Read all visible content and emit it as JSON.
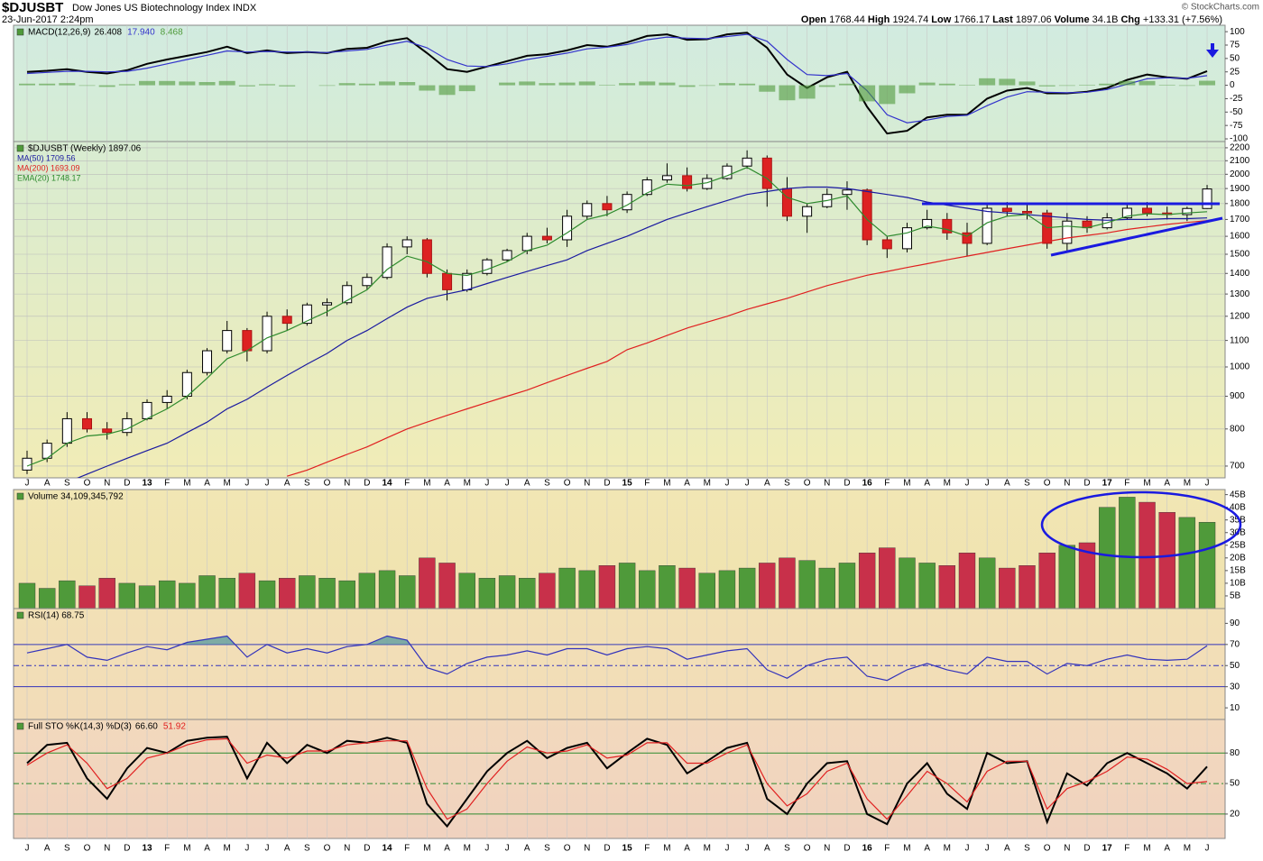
{
  "header": {
    "symbol": "$DJUSBT",
    "name": "Dow Jones US Biotechnology Index INDX",
    "date": "23-Jun-2017 2:24pm",
    "credit": "© StockCharts.com",
    "stats": [
      {
        "label": "Open",
        "value": "1768.44"
      },
      {
        "label": "High",
        "value": "1924.74"
      },
      {
        "label": "Low",
        "value": "1766.17"
      },
      {
        "label": "Last",
        "value": "1897.06"
      },
      {
        "label": "Volume",
        "value": "34.1B"
      },
      {
        "label": "Chg",
        "value": "+133.31 (+7.56%)"
      }
    ]
  },
  "chart_data": [
    {
      "type": "line",
      "title": "MACD(12,26,9)",
      "ylim": [
        -105,
        112
      ],
      "yticks": [
        100,
        75,
        50,
        25,
        0,
        -25,
        -50,
        -75,
        -100
      ],
      "series": [
        {
          "name": "26.408",
          "color": "#000000",
          "values": [
            25,
            27,
            30,
            25,
            22,
            28,
            40,
            48,
            55,
            62,
            72,
            60,
            65,
            60,
            62,
            60,
            68,
            70,
            82,
            88,
            60,
            30,
            25,
            35,
            45,
            55,
            58,
            65,
            75,
            72,
            80,
            92,
            95,
            85,
            86,
            95,
            98,
            70,
            20,
            -5,
            15,
            25,
            -40,
            -90,
            -85,
            -60,
            -55,
            -55,
            -25,
            -10,
            -5,
            -15,
            -15,
            -12,
            -5,
            10,
            20,
            15,
            12,
            26.408
          ]
        },
        {
          "name": "17.940",
          "color": "#3333cc",
          "values": [
            22,
            24,
            26,
            26,
            25,
            26,
            32,
            40,
            48,
            56,
            64,
            62,
            63,
            62,
            62,
            61,
            64,
            67,
            75,
            82,
            70,
            48,
            36,
            35,
            40,
            48,
            54,
            60,
            68,
            71,
            76,
            85,
            90,
            88,
            87,
            91,
            95,
            82,
            48,
            20,
            18,
            22,
            -10,
            -55,
            -70,
            -65,
            -58,
            -56,
            -38,
            -22,
            -12,
            -13,
            -14,
            -13,
            -8,
            2,
            12,
            14,
            13,
            17.94
          ]
        },
        {
          "name": "8.468",
          "color": "#4f9a3a",
          "type": "bar",
          "values": [
            3,
            3,
            4,
            -1,
            -3,
            2,
            8,
            8,
            7,
            6,
            8,
            -2,
            2,
            -2,
            0,
            -1,
            4,
            3,
            7,
            6,
            -10,
            -18,
            -11,
            0,
            5,
            7,
            4,
            5,
            7,
            1,
            4,
            7,
            5,
            -3,
            -1,
            4,
            3,
            -12,
            -28,
            -25,
            -3,
            3,
            -30,
            -35,
            -15,
            5,
            3,
            1,
            13,
            12,
            7,
            -2,
            -1,
            1,
            3,
            8,
            8,
            1,
            -1,
            8.468
          ]
        }
      ]
    },
    {
      "type": "candlestick",
      "title": "$DJUSBT (Weekly) 1897.06",
      "log_scale": true,
      "grid": true,
      "ylim": [
        671,
        2250
      ],
      "yticks": [
        700,
        800,
        900,
        1000,
        1100,
        1200,
        1300,
        1400,
        1500,
        1600,
        1700,
        1800,
        1900,
        2000,
        2100,
        2200
      ],
      "categories": [
        "J",
        "A",
        "S",
        "O",
        "N",
        "D",
        "13",
        "F",
        "M",
        "A",
        "M",
        "J",
        "J",
        "A",
        "S",
        "O",
        "N",
        "D",
        "14",
        "F",
        "M",
        "A",
        "M",
        "J",
        "J",
        "A",
        "S",
        "O",
        "N",
        "D",
        "15",
        "F",
        "M",
        "A",
        "M",
        "J",
        "J",
        "A",
        "S",
        "O",
        "N",
        "D",
        "16",
        "F",
        "M",
        "A",
        "M",
        "J",
        "J",
        "A",
        "S",
        "O",
        "N",
        "D",
        "17",
        "F",
        "M",
        "A",
        "M",
        "J"
      ],
      "open": [
        690,
        720,
        760,
        830,
        800,
        790,
        830,
        880,
        900,
        980,
        1060,
        1140,
        1060,
        1200,
        1170,
        1250,
        1260,
        1340,
        1380,
        1540,
        1580,
        1400,
        1320,
        1400,
        1470,
        1520,
        1600,
        1580,
        1720,
        1800,
        1760,
        1860,
        1960,
        1990,
        1900,
        1970,
        2060,
        2120,
        1900,
        1720,
        1780,
        1860,
        1890,
        1580,
        1530,
        1650,
        1700,
        1620,
        1560,
        1770,
        1750,
        1740,
        1560,
        1690,
        1650,
        1710,
        1770,
        1740,
        1730,
        1768.44
      ],
      "high": [
        740,
        770,
        850,
        850,
        820,
        850,
        890,
        920,
        990,
        1070,
        1180,
        1150,
        1220,
        1230,
        1260,
        1280,
        1360,
        1400,
        1560,
        1600,
        1590,
        1420,
        1420,
        1480,
        1530,
        1620,
        1650,
        1760,
        1820,
        1850,
        1880,
        1980,
        2080,
        2050,
        2000,
        2080,
        2180,
        2140,
        1980,
        1800,
        1900,
        1950,
        1900,
        1600,
        1680,
        1760,
        1740,
        1680,
        1790,
        1810,
        1800,
        1760,
        1740,
        1720,
        1740,
        1800,
        1810,
        1780,
        1780,
        1924.74
      ],
      "low": [
        680,
        710,
        750,
        790,
        770,
        780,
        825,
        860,
        890,
        970,
        1050,
        1020,
        1050,
        1140,
        1160,
        1200,
        1250,
        1320,
        1370,
        1500,
        1380,
        1270,
        1310,
        1390,
        1460,
        1500,
        1560,
        1540,
        1700,
        1720,
        1740,
        1850,
        1940,
        1880,
        1890,
        1960,
        2040,
        1780,
        1690,
        1620,
        1770,
        1760,
        1550,
        1480,
        1510,
        1640,
        1580,
        1490,
        1550,
        1720,
        1700,
        1530,
        1520,
        1620,
        1640,
        1700,
        1720,
        1700,
        1690,
        1766.17
      ],
      "close": [
        720,
        760,
        830,
        800,
        790,
        830,
        880,
        900,
        980,
        1060,
        1140,
        1060,
        1200,
        1170,
        1250,
        1260,
        1340,
        1380,
        1540,
        1580,
        1400,
        1320,
        1400,
        1470,
        1520,
        1600,
        1580,
        1720,
        1800,
        1760,
        1860,
        1960,
        1990,
        1900,
        1970,
        2060,
        2120,
        1900,
        1720,
        1780,
        1860,
        1890,
        1580,
        1530,
        1650,
        1700,
        1620,
        1560,
        1770,
        1750,
        1740,
        1560,
        1690,
        1650,
        1710,
        1770,
        1740,
        1730,
        1768.44,
        1897.06
      ],
      "series": [
        {
          "name": "MA(50) 1709.56",
          "color": "#1a1aa0",
          "values": [
            610,
            630,
            660,
            680,
            700,
            720,
            740,
            760,
            790,
            820,
            860,
            890,
            930,
            970,
            1010,
            1050,
            1100,
            1140,
            1190,
            1240,
            1280,
            1300,
            1320,
            1350,
            1380,
            1410,
            1440,
            1470,
            1520,
            1560,
            1600,
            1650,
            1700,
            1740,
            1780,
            1820,
            1860,
            1880,
            1900,
            1910,
            1910,
            1900,
            1880,
            1860,
            1840,
            1810,
            1790,
            1770,
            1750,
            1740,
            1730,
            1720,
            1710,
            1700,
            1695,
            1700,
            1700,
            1705,
            1705,
            1709.56
          ]
        },
        {
          "name": "MA(200) 1693.09",
          "color": "#e02020",
          "values": [
            null,
            null,
            null,
            null,
            null,
            null,
            null,
            null,
            null,
            null,
            null,
            null,
            null,
            675,
            690,
            710,
            730,
            750,
            775,
            800,
            820,
            840,
            860,
            880,
            900,
            920,
            945,
            970,
            995,
            1020,
            1064,
            1090,
            1120,
            1150,
            1175,
            1200,
            1230,
            1255,
            1280,
            1310,
            1340,
            1365,
            1391,
            1410,
            1430,
            1450,
            1470,
            1490,
            1510,
            1530,
            1550,
            1570,
            1590,
            1605,
            1620,
            1640,
            1655,
            1670,
            1682,
            1693.09
          ]
        },
        {
          "name": "EMA(20) 1748.17",
          "color": "#2e8b2e",
          "values": [
            700,
            720,
            760,
            780,
            785,
            800,
            830,
            860,
            900,
            960,
            1030,
            1060,
            1110,
            1140,
            1180,
            1220,
            1270,
            1320,
            1420,
            1490,
            1460,
            1400,
            1390,
            1420,
            1460,
            1520,
            1550,
            1620,
            1700,
            1730,
            1790,
            1870,
            1930,
            1920,
            1940,
            1990,
            2050,
            1970,
            1840,
            1800,
            1820,
            1850,
            1700,
            1600,
            1620,
            1660,
            1640,
            1600,
            1680,
            1720,
            1730,
            1650,
            1660,
            1650,
            1680,
            1720,
            1735,
            1730,
            1740,
            1748.17
          ]
        }
      ]
    },
    {
      "type": "bar",
      "title": "Volume 34,109,345,792",
      "up_color": "#4f9a3a",
      "down_color": "#c8304a",
      "ylim": [
        0,
        47
      ],
      "yticks": [
        {
          "value": 45,
          "label": "45B"
        },
        {
          "value": 40,
          "label": "40B"
        },
        {
          "value": 35,
          "label": "35B"
        },
        {
          "value": 30,
          "label": "30B"
        },
        {
          "value": 25,
          "label": "25B"
        },
        {
          "value": 20,
          "label": "20B"
        },
        {
          "value": 15,
          "label": "15B"
        },
        {
          "value": 10,
          "label": "10B"
        },
        {
          "value": 5,
          "label": "5B"
        }
      ],
      "values": [
        10,
        8,
        11,
        9,
        12,
        10,
        9,
        11,
        10,
        13,
        12,
        14,
        11,
        12,
        13,
        12,
        11,
        14,
        15,
        13,
        20,
        18,
        14,
        12,
        13,
        12,
        14,
        16,
        15,
        17,
        18,
        15,
        17,
        16,
        14,
        15,
        16,
        18,
        20,
        19,
        16,
        18,
        22,
        24,
        20,
        18,
        17,
        22,
        20,
        16,
        17,
        22,
        25,
        26,
        40,
        44,
        42,
        38,
        36,
        34.1
      ]
    },
    {
      "type": "line",
      "title": "RSI(14) 68.75",
      "ylim": [
        -1,
        104
      ],
      "yticks": [
        90,
        70,
        50,
        30,
        10
      ],
      "overbought_fill": "#5f9ea0",
      "ref_lines": [
        {
          "value": 30,
          "color": "#3333bb"
        },
        {
          "value": 50,
          "color": "#3333bb",
          "dashed": true
        },
        {
          "value": 70,
          "color": "#3333bb"
        }
      ],
      "series": [
        {
          "color": "#3333bb",
          "values": [
            62,
            66,
            70,
            58,
            55,
            62,
            68,
            65,
            72,
            75,
            78,
            58,
            70,
            62,
            66,
            62,
            68,
            70,
            78,
            74,
            48,
            42,
            52,
            58,
            60,
            64,
            60,
            66,
            66,
            60,
            66,
            68,
            66,
            56,
            60,
            64,
            66,
            46,
            38,
            50,
            56,
            58,
            40,
            36,
            46,
            52,
            46,
            42,
            58,
            54,
            54,
            42,
            52,
            50,
            56,
            60,
            56,
            55,
            56,
            68.75
          ]
        }
      ]
    },
    {
      "type": "line",
      "title": "Full STO %K(14,3) %D(3)",
      "ylim": [
        -4,
        113
      ],
      "yticks": [
        80,
        50,
        20
      ],
      "ref_lines": [
        {
          "value": 20,
          "color": "#2e8b2e"
        },
        {
          "value": 50,
          "color": "#2e8b2e",
          "dashed": true
        },
        {
          "value": 80,
          "color": "#2e8b2e"
        }
      ],
      "categories": [
        "J",
        "A",
        "S",
        "O",
        "N",
        "D",
        "13",
        "F",
        "M",
        "A",
        "M",
        "J",
        "J",
        "A",
        "S",
        "O",
        "N",
        "D",
        "14",
        "F",
        "M",
        "A",
        "M",
        "J",
        "J",
        "A",
        "S",
        "O",
        "N",
        "D",
        "15",
        "F",
        "M",
        "A",
        "M",
        "J",
        "J",
        "A",
        "S",
        "O",
        "N",
        "D",
        "16",
        "F",
        "M",
        "A",
        "M",
        "J",
        "J",
        "A",
        "S",
        "O",
        "N",
        "D",
        "17",
        "F",
        "M",
        "A",
        "M",
        "J"
      ],
      "series": [
        {
          "name": "66.60",
          "color": "#000000",
          "values": [
            70,
            88,
            90,
            55,
            35,
            65,
            85,
            80,
            92,
            95,
            96,
            55,
            90,
            70,
            88,
            80,
            92,
            90,
            95,
            90,
            30,
            8,
            35,
            62,
            80,
            92,
            75,
            85,
            90,
            65,
            80,
            94,
            88,
            60,
            72,
            85,
            90,
            35,
            20,
            50,
            70,
            72,
            20,
            10,
            50,
            70,
            40,
            25,
            80,
            70,
            72,
            12,
            60,
            48,
            70,
            80,
            70,
            60,
            45,
            66.6
          ]
        },
        {
          "name": "51.92",
          "color": "#e02020",
          "values": [
            68,
            80,
            88,
            70,
            45,
            55,
            75,
            80,
            88,
            93,
            94,
            70,
            78,
            75,
            82,
            82,
            88,
            90,
            92,
            92,
            45,
            15,
            25,
            50,
            72,
            86,
            80,
            82,
            88,
            75,
            78,
            90,
            90,
            70,
            70,
            80,
            88,
            50,
            28,
            40,
            62,
            70,
            35,
            15,
            38,
            62,
            50,
            32,
            62,
            72,
            72,
            25,
            45,
            52,
            62,
            76,
            74,
            64,
            50,
            51.92
          ]
        }
      ]
    }
  ]
}
